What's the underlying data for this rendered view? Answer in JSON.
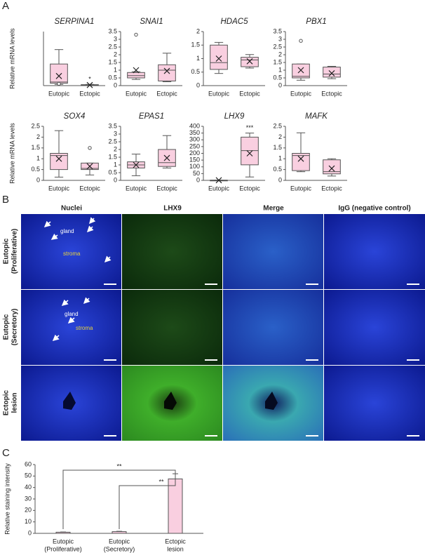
{
  "panel_labels": [
    "A",
    "B",
    "C"
  ],
  "chart_data": [
    {
      "type": "box",
      "title": "SERPINA1",
      "ylabel": "Relative mRNA levels",
      "categories": [
        "Eutopic",
        "Ectopic"
      ],
      "color": "#f9cfe0",
      "ylim": [
        0,
        4.5
      ],
      "annotation": "*",
      "boxes": [
        {
          "min": 0.1,
          "q1": 0.2,
          "median": 0.3,
          "q3": 1.8,
          "max": 3.0,
          "mean": 0.8,
          "outliers": [
            0.15
          ]
        },
        {
          "min": 0.02,
          "q1": 0.03,
          "median": 0.05,
          "q3": 0.08,
          "max": 0.1,
          "mean": 0.05,
          "outliers": []
        }
      ]
    },
    {
      "type": "box",
      "title": "SNAI1",
      "categories": [
        "Eutopic",
        "Ectopic"
      ],
      "color": "#f9cfe0",
      "ylim": [
        0,
        3.5
      ],
      "yticks": [
        0,
        0.5,
        1,
        1.5,
        2,
        2.5,
        3,
        3.5
      ],
      "boxes": [
        {
          "min": 0.4,
          "q1": 0.5,
          "median": 0.65,
          "q3": 0.85,
          "max": 0.9,
          "mean": 1.0,
          "outliers": [
            3.3
          ]
        },
        {
          "min": 0.25,
          "q1": 0.3,
          "median": 1.0,
          "q3": 1.35,
          "max": 2.1,
          "mean": 0.95,
          "outliers": []
        }
      ]
    },
    {
      "type": "box",
      "title": "HDAC5",
      "categories": [
        "Eutopic",
        "Ectopic"
      ],
      "color": "#f9cfe0",
      "ylim": [
        0,
        2
      ],
      "yticks": [
        0,
        0.5,
        1,
        1.5,
        2
      ],
      "boxes": [
        {
          "min": 0.45,
          "q1": 0.6,
          "median": 0.85,
          "q3": 1.5,
          "max": 1.6,
          "mean": 1.0,
          "outliers": []
        },
        {
          "min": 0.65,
          "q1": 0.7,
          "median": 0.95,
          "q3": 1.05,
          "max": 1.15,
          "mean": 0.9,
          "outliers": []
        }
      ]
    },
    {
      "type": "box",
      "title": "PBX1",
      "categories": [
        "Eutopic",
        "Ectopic"
      ],
      "color": "#f9cfe0",
      "ylim": [
        0,
        3.5
      ],
      "yticks": [
        0,
        0.5,
        1,
        1.5,
        2,
        2.5,
        3,
        3.5
      ],
      "boxes": [
        {
          "min": 0.35,
          "q1": 0.5,
          "median": 0.6,
          "q3": 1.4,
          "max": 1.4,
          "mean": 1.0,
          "outliers": [
            2.9
          ]
        },
        {
          "min": 0.45,
          "q1": 0.55,
          "median": 0.75,
          "q3": 1.2,
          "max": 1.25,
          "mean": 0.8,
          "outliers": []
        }
      ]
    },
    {
      "type": "box",
      "title": "SOX4",
      "ylabel": "Relative mRNA levels",
      "categories": [
        "Eutopic",
        "Ectopic"
      ],
      "color": "#f9cfe0",
      "ylim": [
        0,
        2.5
      ],
      "yticks": [
        0,
        0.5,
        1,
        1.5,
        2,
        2.5
      ],
      "boxes": [
        {
          "min": 0.15,
          "q1": 0.5,
          "median": 1.15,
          "q3": 1.25,
          "max": 2.3,
          "mean": 1.0,
          "outliers": []
        },
        {
          "min": 0.25,
          "q1": 0.5,
          "median": 0.55,
          "q3": 0.8,
          "max": 0.8,
          "mean": 0.65,
          "outliers": [
            1.5
          ]
        }
      ]
    },
    {
      "type": "box",
      "title": "EPAS1",
      "categories": [
        "Eutopic",
        "Ectopic"
      ],
      "color": "#f9cfe0",
      "ylim": [
        0,
        3.5
      ],
      "yticks": [
        0,
        0.5,
        1,
        1.5,
        2,
        2.5,
        3,
        3.5
      ],
      "boxes": [
        {
          "min": 0.3,
          "q1": 0.8,
          "median": 1.0,
          "q3": 1.2,
          "max": 1.7,
          "mean": 1.0,
          "outliers": []
        },
        {
          "min": 0.8,
          "q1": 0.9,
          "median": 1.15,
          "q3": 2.0,
          "max": 2.9,
          "mean": 1.45,
          "outliers": []
        }
      ]
    },
    {
      "type": "box",
      "title": "LHX9",
      "categories": [
        "Eutopic",
        "Ectopic"
      ],
      "color": "#f9cfe0",
      "ylim": [
        0,
        400
      ],
      "yticks": [
        0,
        50,
        100,
        150,
        200,
        250,
        300,
        350,
        400
      ],
      "annotation": "***",
      "boxes": [
        {
          "min": 0.5,
          "q1": 0.8,
          "median": 1,
          "q3": 1.2,
          "max": 1.5,
          "mean": 1,
          "outliers": []
        },
        {
          "min": 25,
          "q1": 115,
          "median": 220,
          "q3": 320,
          "max": 350,
          "mean": 200,
          "outliers": []
        }
      ]
    },
    {
      "type": "box",
      "title": "MAFK",
      "categories": [
        "Eutopic",
        "Ectopic"
      ],
      "color": "#f9cfe0",
      "ylim": [
        0,
        2.5
      ],
      "yticks": [
        0,
        0.5,
        1,
        1.5,
        2,
        2.5
      ],
      "boxes": [
        {
          "min": 0.4,
          "q1": 0.45,
          "median": 1.15,
          "q3": 1.25,
          "max": 2.2,
          "mean": 1.0,
          "outliers": []
        },
        {
          "min": 0.2,
          "q1": 0.3,
          "median": 0.4,
          "q3": 0.95,
          "max": 1.0,
          "mean": 0.55,
          "outliers": []
        }
      ]
    },
    {
      "type": "bar",
      "ylabel": "Relative staining intensity",
      "categories": [
        [
          "Eutopic",
          "(Proliferative)"
        ],
        [
          "Eutopic",
          "(Secretory)"
        ],
        [
          "Ectopic",
          "lesion"
        ]
      ],
      "values": [
        1,
        1.5,
        47.5
      ],
      "errors": [
        0.2,
        0.3,
        4.5
      ],
      "color": "#f9cfe0",
      "ylim": [
        0,
        60
      ],
      "yticks": [
        0,
        10,
        20,
        30,
        40,
        50,
        60
      ],
      "significance_labels": [
        "**",
        "**"
      ]
    }
  ],
  "panel_b": {
    "columns": [
      "Nuclei",
      "LHX9",
      "Merge",
      "IgG (negative control)"
    ],
    "rows": [
      [
        "Eutopic",
        "(Proliferative)"
      ],
      [
        "Eutopic",
        "(Secretory)"
      ],
      [
        "Ectopic",
        "lesion"
      ]
    ],
    "gland": "gland",
    "stroma": "stroma"
  }
}
